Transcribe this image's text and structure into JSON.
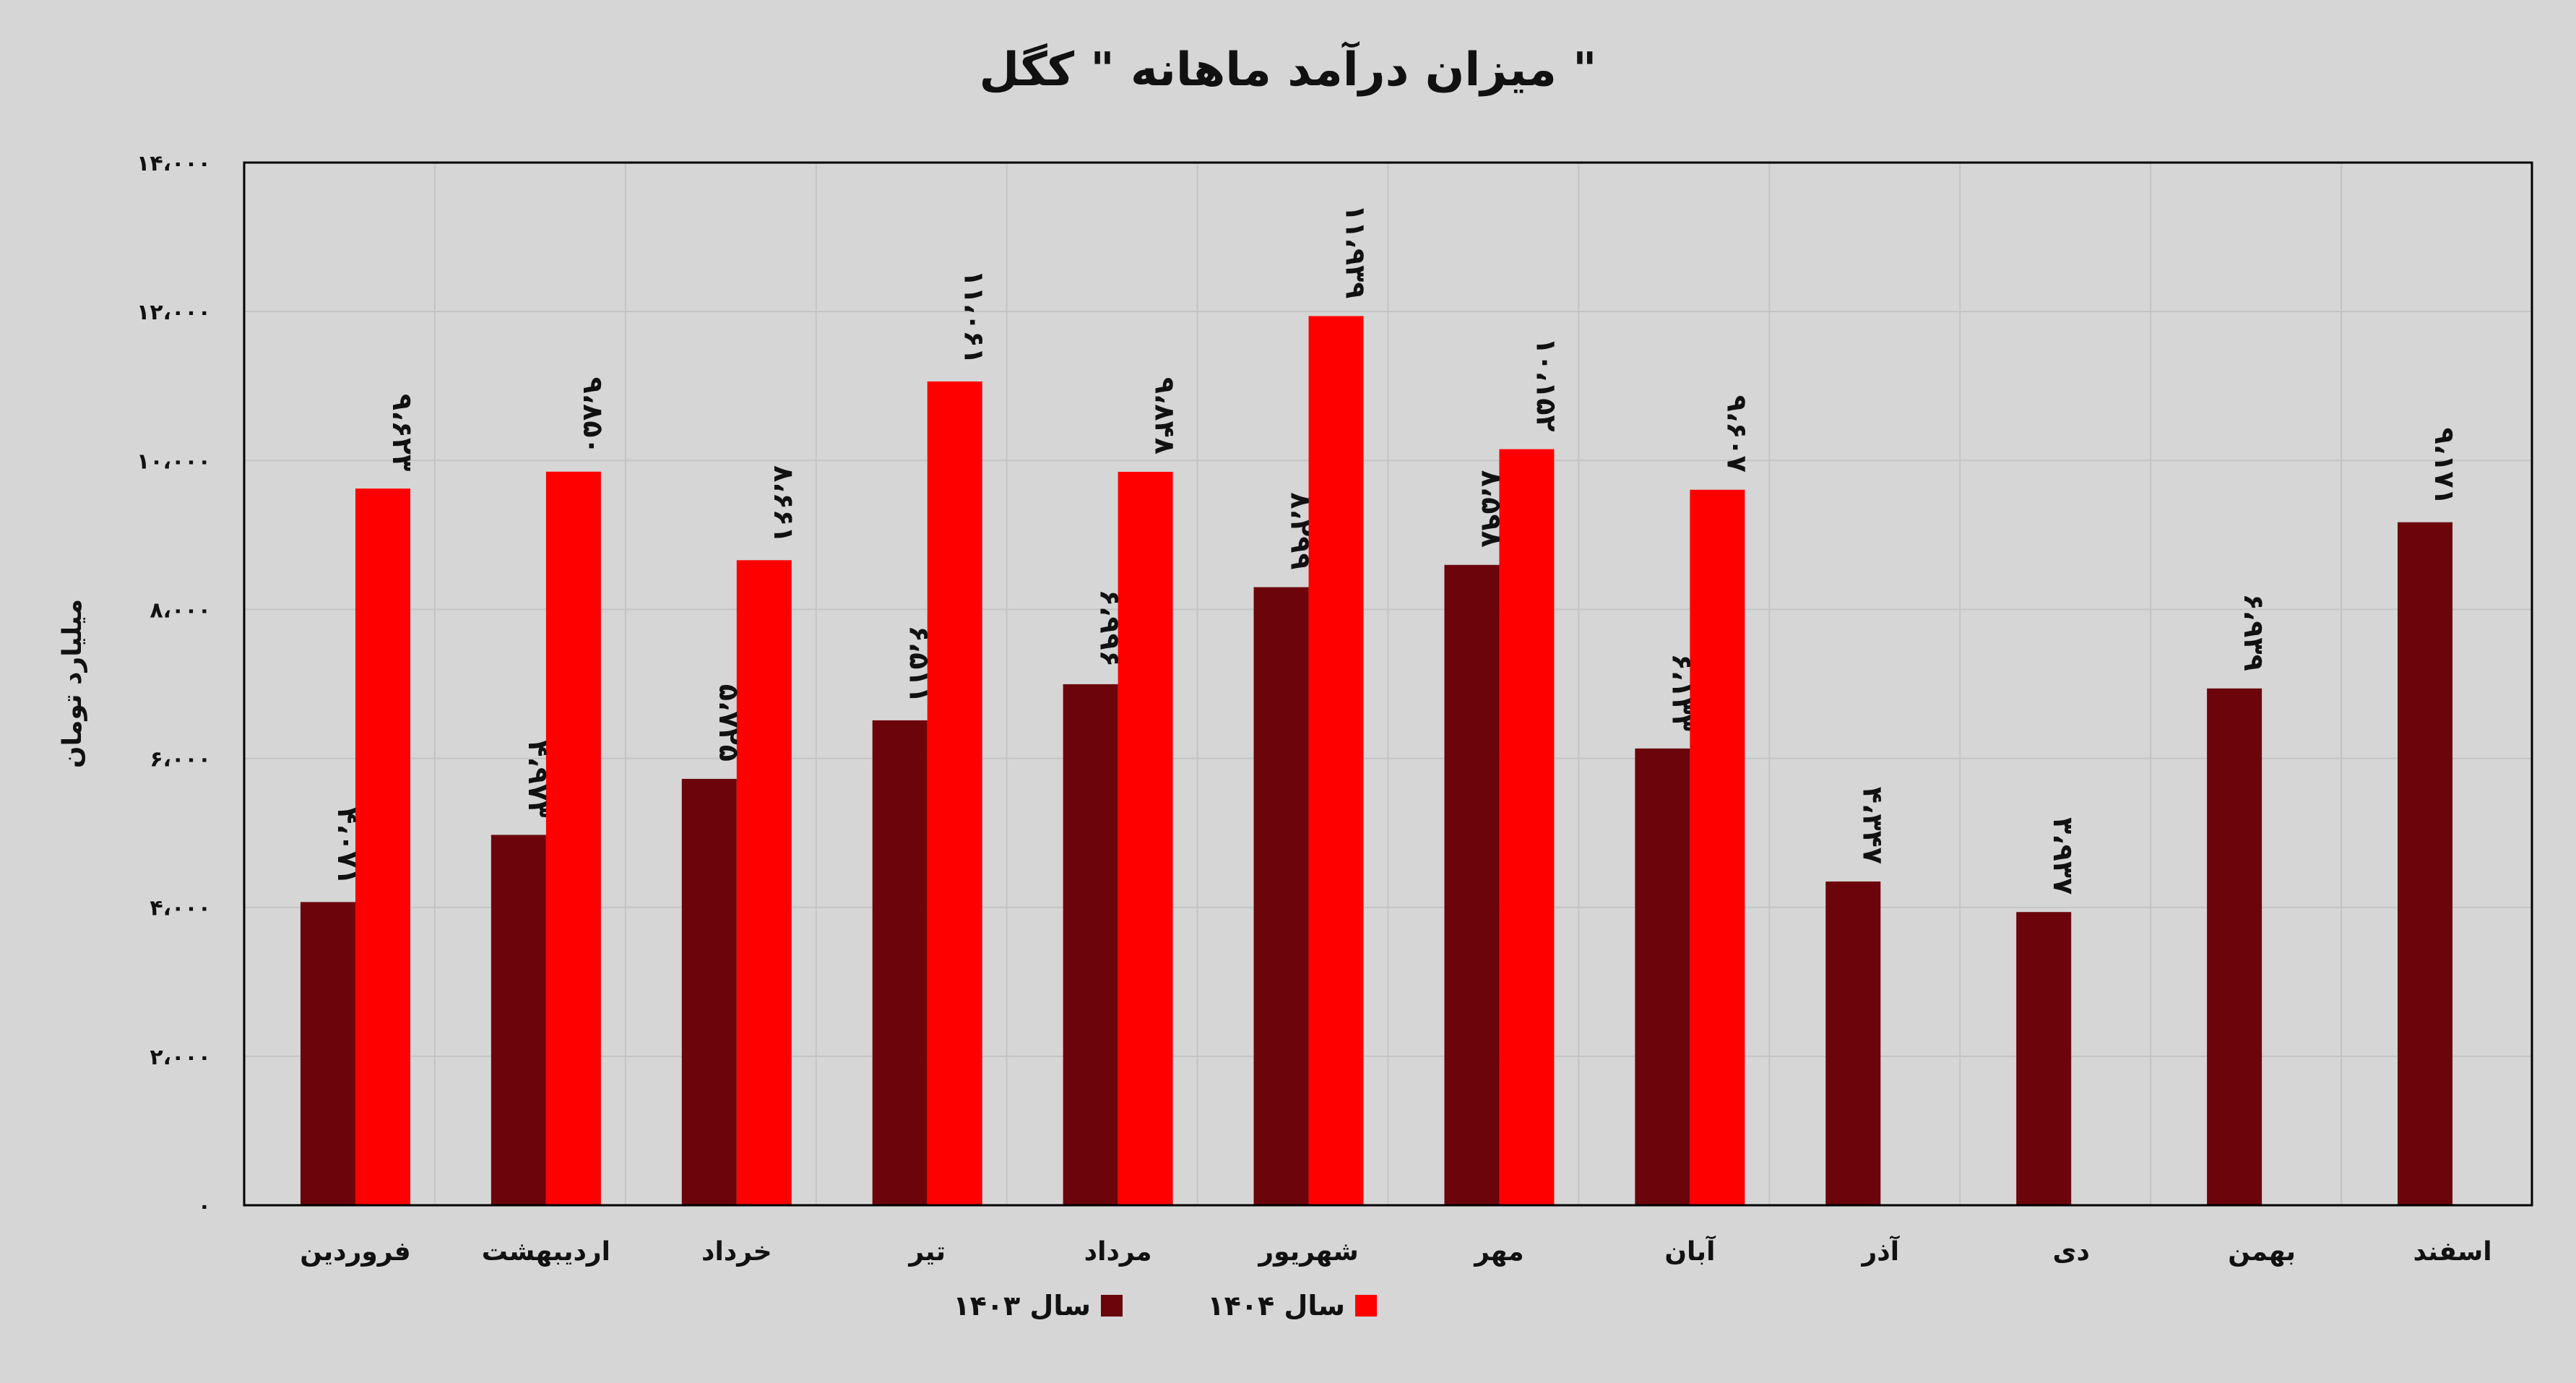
{
  "chart_data": {
    "type": "bar",
    "title": "میزان درآمد ماهانه \" کگل \"",
    "ylabel": "میلیارد تومان",
    "ylim": [
      0,
      14000
    ],
    "yticks": [
      0,
      2000,
      4000,
      6000,
      8000,
      10000,
      12000,
      14000
    ],
    "ytick_labels": [
      "۰",
      "۲،۰۰۰",
      "۴،۰۰۰",
      "۶،۰۰۰",
      "۸،۰۰۰",
      "۱۰،۰۰۰",
      "۱۲،۰۰۰",
      "۱۴،۰۰۰"
    ],
    "grid": true,
    "legend_position": "bottom",
    "categories": [
      "فروردین",
      "اردیبهشت",
      "خرداد",
      "تیر",
      "مرداد",
      "شهریور",
      "مهر",
      "آبان",
      "آذر",
      "دی",
      "بهمن",
      "اسفند"
    ],
    "series": [
      {
        "name": "سال ۱۴۰۳",
        "color": "#6b040b",
        "values": [
          4071,
          4973,
          5725,
          6511,
          6996,
          8299,
          8598,
          6133,
          4347,
          3937,
          6939,
          9171
        ],
        "labels": [
          "۴،۰۷۱",
          "۴،۹۷۳",
          "۵،۷۲۵",
          "۶،۵۱۱",
          "۶،۹۹۶",
          "۸،۲۹۹",
          "۸،۵۹۸",
          "۶،۱۳۳",
          "۴،۳۴۷",
          "۳،۹۳۷",
          "۶،۹۳۹",
          "۹،۱۷۱"
        ]
      },
      {
        "name": "سال ۱۴۰۴",
        "color": "#ff0000",
        "values": [
          9623,
          9850,
          8661,
          11061,
          9848,
          11939,
          10152,
          9607,
          null,
          null,
          null,
          null
        ],
        "labels": [
          "۹،۶۲۳",
          "۹،۸۵۰",
          "۸،۶۶۱",
          "۱۱،۰۶۱",
          "۹،۸۴۸",
          "۱۱،۹۳۹",
          "۱۰،۱۵۲",
          "۹،۶۰۷",
          null,
          null,
          null,
          null
        ]
      }
    ]
  }
}
